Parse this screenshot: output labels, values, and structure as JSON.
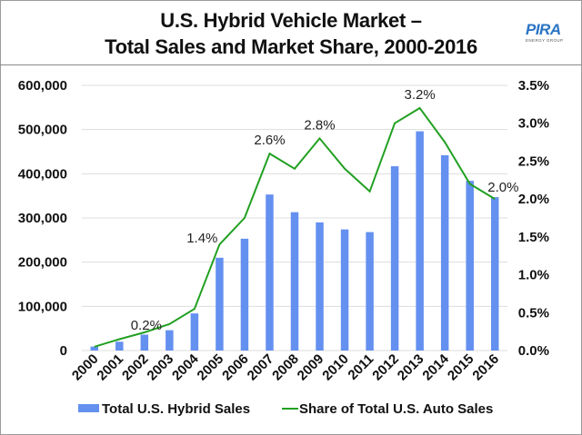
{
  "header": {
    "title_line1": "U.S. Hybrid Vehicle Market –",
    "title_line2": "Total Sales and Market Share, 2000-2016",
    "logo_main": "PIRA",
    "logo_sub": "ENERGY GROUP"
  },
  "colors": {
    "bar": "#6490f0",
    "line": "#22a022",
    "grid": "#dddddd"
  },
  "chart_data": {
    "type": "bar",
    "title": "U.S. Hybrid Vehicle Market – Total Sales and Market Share, 2000-2016",
    "xlabel": "",
    "ylabel": "",
    "y2label": "",
    "categories": [
      "2000",
      "2001",
      "2002",
      "2003",
      "2004",
      "2005",
      "2006",
      "2007",
      "2008",
      "2009",
      "2010",
      "2011",
      "2012",
      "2013",
      "2014",
      "2015",
      "2016"
    ],
    "series": [
      {
        "name": "Total U.S. Hybrid Sales",
        "type": "bar",
        "axis": "left",
        "values": [
          9000,
          20000,
          36000,
          46000,
          84000,
          210000,
          253000,
          353000,
          313000,
          290000,
          274000,
          268000,
          417000,
          496000,
          442000,
          384000,
          347000
        ]
      },
      {
        "name": "Share of Total U.S. Auto Sales",
        "type": "line",
        "axis": "right",
        "unit": "%",
        "values": [
          0.05,
          0.15,
          0.24,
          0.35,
          0.55,
          1.4,
          1.75,
          2.6,
          2.4,
          2.8,
          2.4,
          2.1,
          3.0,
          3.2,
          2.75,
          2.2,
          2.0
        ]
      }
    ],
    "data_labels": [
      {
        "category": "2002",
        "text": "0.2%"
      },
      {
        "category": "2005",
        "text": "1.4%"
      },
      {
        "category": "2007",
        "text": "2.6%"
      },
      {
        "category": "2009",
        "text": "2.8%"
      },
      {
        "category": "2013",
        "text": "3.2%"
      },
      {
        "category": "2016",
        "text": "2.0%"
      }
    ],
    "ylim": [
      0,
      600000
    ],
    "y2lim": [
      0,
      3.5
    ],
    "yticks": [
      "0",
      "100,000",
      "200,000",
      "300,000",
      "400,000",
      "500,000",
      "600,000"
    ],
    "y2ticks": [
      "0.0%",
      "0.5%",
      "1.0%",
      "1.5%",
      "2.0%",
      "2.5%",
      "3.0%",
      "3.5%"
    ],
    "grid": true,
    "legend": "bottom"
  }
}
